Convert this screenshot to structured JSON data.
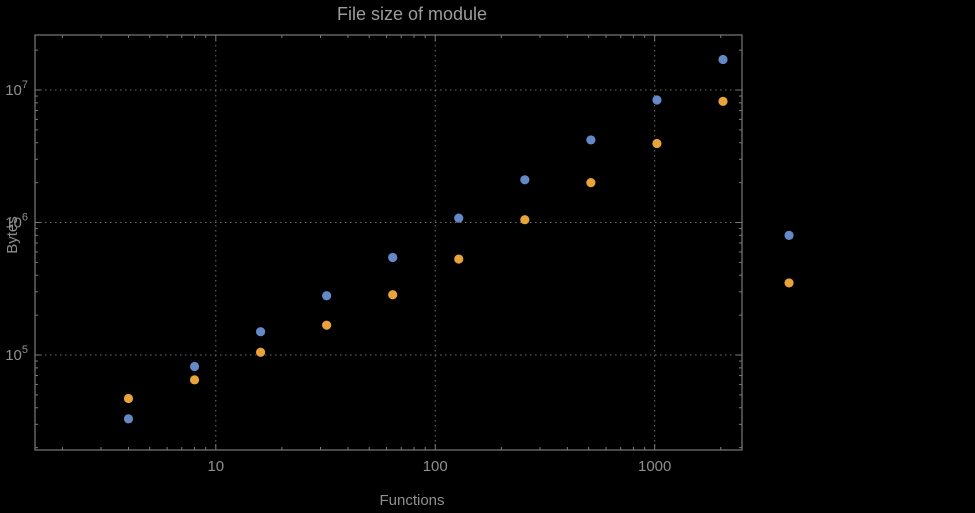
{
  "title": "File size of module",
  "colors": {
    "background": "#000000",
    "frame": "#7a7a7a",
    "grid": "#6e6e6e",
    "text": "#8f8f8f",
    "title_text": "#9c9c9c",
    "series_blue": "#6589c7",
    "series_orange": "#e9a33b"
  },
  "chart_data": {
    "type": "scatter",
    "title": "File size of module",
    "xlabel": "Functions",
    "ylabel": "Bytes",
    "x_scale": "log",
    "y_scale": "log",
    "grid": true,
    "legend": "none",
    "x_range": [
      1.5,
      2500
    ],
    "y_range": [
      19200,
      26000000
    ],
    "x_ticks": [
      {
        "value": 10,
        "label": "10"
      },
      {
        "value": 100,
        "label": "100"
      },
      {
        "value": 1000,
        "label": "1000"
      }
    ],
    "y_ticks": [
      {
        "value": 100000,
        "base": "10",
        "exp": "5"
      },
      {
        "value": 1000000,
        "base": "10",
        "exp": "6"
      },
      {
        "value": 10000000,
        "base": "10",
        "exp": "7"
      }
    ],
    "x": [
      4,
      8,
      16,
      32,
      64,
      128,
      256,
      512,
      1024,
      2048,
      4096
    ],
    "series": [
      {
        "name": "series-blue",
        "color": "#6589c7",
        "values": [
          33000,
          82000,
          150000,
          280000,
          545000,
          1080000,
          2100000,
          4200000,
          8400000,
          17000000,
          800000
        ]
      },
      {
        "name": "series-orange",
        "color": "#e9a33b",
        "values": [
          47000,
          65000,
          105000,
          168000,
          285000,
          530000,
          1050000,
          2000000,
          3950000,
          8200000,
          350000
        ]
      }
    ]
  }
}
